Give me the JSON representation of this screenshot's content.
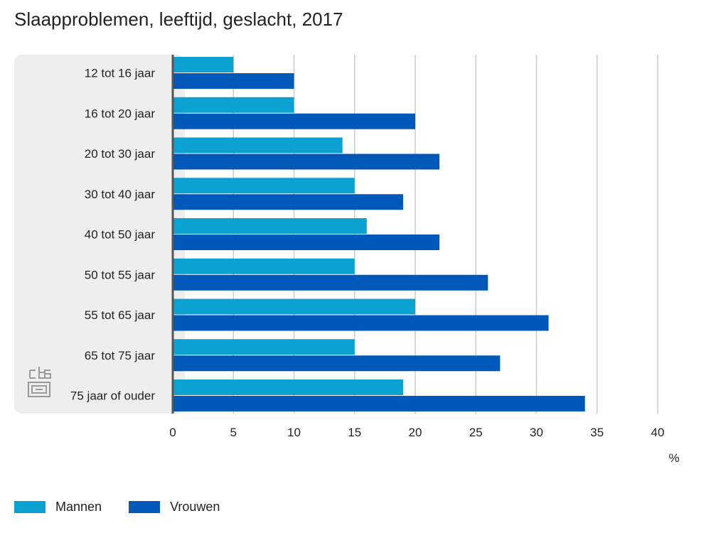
{
  "chart_data": {
    "type": "bar",
    "orientation": "horizontal",
    "title": "Slaapproblemen, leeftijd, geslacht, 2017",
    "categories": [
      "12 tot 16 jaar",
      "16 tot 20 jaar",
      "20 tot 30 jaar",
      "30 tot 40 jaar",
      "40 tot 50 jaar",
      "50 tot 55 jaar",
      "55 tot 65 jaar",
      "65 tot 75 jaar",
      "75 jaar of ouder"
    ],
    "series": [
      {
        "name": "Mannen",
        "color": "#0ba1d1",
        "values": [
          5,
          10,
          14,
          15,
          16,
          15,
          20,
          15,
          19
        ]
      },
      {
        "name": "Vrouwen",
        "color": "#0058b8",
        "values": [
          10,
          20,
          22,
          19,
          22,
          26,
          31,
          27,
          34
        ]
      }
    ],
    "xlabel": "%",
    "xlim": [
      0,
      40
    ],
    "xticks": [
      0,
      5,
      10,
      15,
      20,
      25,
      30,
      35,
      40
    ],
    "grid": true,
    "legend_position": "bottom-left"
  },
  "logo": {
    "name": "cbs-logo",
    "text": "cbs"
  }
}
